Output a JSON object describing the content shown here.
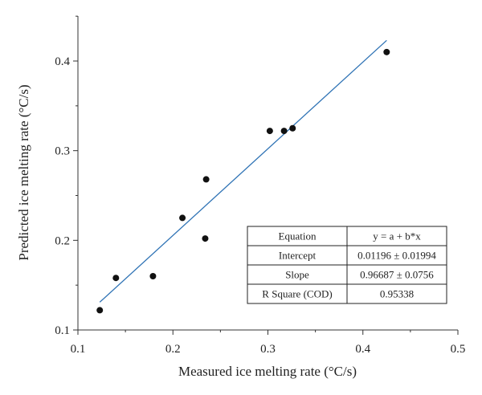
{
  "chart_data": {
    "type": "scatter",
    "xlabel": "Measured ice melting rate (°C/s)",
    "ylabel": "Predicted ice melting rate (°C/s)",
    "xlim": [
      0.1,
      0.5
    ],
    "ylim": [
      0.1,
      0.45
    ],
    "xticks": [
      "0.1",
      "0.2",
      "0.3",
      "0.4",
      "0.5"
    ],
    "yticks": [
      "0.1",
      "0.2",
      "0.3",
      "0.4"
    ],
    "grid": false,
    "points": [
      {
        "x": 0.123,
        "y": 0.122
      },
      {
        "x": 0.14,
        "y": 0.158
      },
      {
        "x": 0.179,
        "y": 0.16
      },
      {
        "x": 0.21,
        "y": 0.225
      },
      {
        "x": 0.234,
        "y": 0.202
      },
      {
        "x": 0.235,
        "y": 0.268
      },
      {
        "x": 0.302,
        "y": 0.322
      },
      {
        "x": 0.317,
        "y": 0.322
      },
      {
        "x": 0.326,
        "y": 0.325
      },
      {
        "x": 0.425,
        "y": 0.41
      }
    ],
    "fit_line": {
      "x": [
        0.123,
        0.425
      ],
      "y": [
        0.131,
        0.423
      ],
      "color": "#2f73b5"
    },
    "marker_color": "#111111",
    "fit_table": {
      "rows": [
        [
          "Equation",
          "y = a + b*x"
        ],
        [
          "Intercept",
          "0.01196 ± 0.01994"
        ],
        [
          "Slope",
          "0.96687 ± 0.0756"
        ],
        [
          "R Square (COD)",
          "0.95338"
        ]
      ]
    }
  }
}
